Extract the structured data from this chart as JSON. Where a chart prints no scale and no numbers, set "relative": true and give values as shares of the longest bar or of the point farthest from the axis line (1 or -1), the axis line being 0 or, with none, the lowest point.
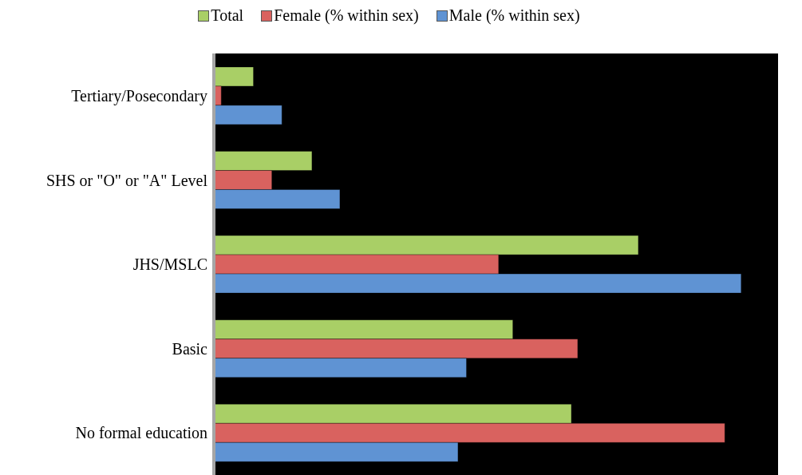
{
  "chart_data": {
    "type": "bar",
    "orientation": "horizontal",
    "relative": true,
    "legend": "top",
    "categories": [
      "Tertiary/Posecondary",
      "SHS or \"O\" or \"A\" Level",
      "JHS/MSLC",
      "Basic",
      "No formal education"
    ],
    "series": [
      {
        "name": "Total",
        "color": "#a9cf66",
        "values": [
          0.075,
          0.186,
          0.805,
          0.567,
          0.678
        ]
      },
      {
        "name": "Female (% within sex)",
        "color": "#d9625f",
        "values": [
          0.014,
          0.11,
          0.54,
          0.69,
          0.969
        ]
      },
      {
        "name": "Male (% within sex)",
        "color": "#5f93d3",
        "values": [
          0.129,
          0.239,
          1,
          0.479,
          0.463
        ]
      }
    ]
  }
}
